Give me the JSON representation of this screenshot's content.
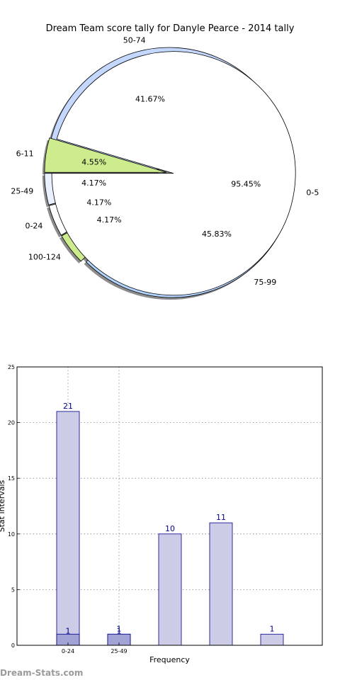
{
  "watermark": "Dream-Stats.com",
  "chart_data": [
    {
      "type": "pie",
      "title": "Dream Team score tally for Danyle Pearce - 2014 tally",
      "shadow": true,
      "outer_slices": [
        {
          "label": "50-74",
          "pct_label": "41.67%",
          "percent": 41.67,
          "color": "#c4d8ff"
        },
        {
          "label": "25-49",
          "pct_label": "4.17%",
          "percent": 4.17,
          "color": "#e9f0ff"
        },
        {
          "label": "0-24",
          "pct_label": "4.17%",
          "percent": 4.17,
          "color": "#ffffff"
        },
        {
          "label": "100-124",
          "pct_label": "4.17%",
          "percent": 4.17,
          "color": "#ccec8e"
        },
        {
          "label": "75-99",
          "pct_label": "45.83%",
          "percent": 45.83,
          "color": "#b3d3ff"
        }
      ],
      "inner_slices": [
        {
          "label": "0-5",
          "pct_label": "95.45%",
          "percent": 95.45,
          "color": "#ffffff"
        },
        {
          "label": "6-11",
          "pct_label": "4.55%",
          "percent": 4.55,
          "color": "#ccec8e"
        }
      ]
    },
    {
      "type": "bar",
      "xlabel": "Frequency",
      "ylabel": "Stat intervals",
      "ylim": [
        0,
        25
      ],
      "yticks": [
        0,
        5,
        10,
        15,
        20,
        25
      ],
      "xtick_labels": [
        "0-24",
        "25-49",
        "",
        "",
        ""
      ],
      "grid": true,
      "bar_color": "#cccce6",
      "edge_color": "#00008b",
      "overlay_color": "#a0a3d3",
      "label_color": "#00008b",
      "values": [
        21,
        1,
        10,
        11,
        1
      ],
      "overlay_values": [
        1,
        1,
        null,
        null,
        null
      ]
    }
  ]
}
